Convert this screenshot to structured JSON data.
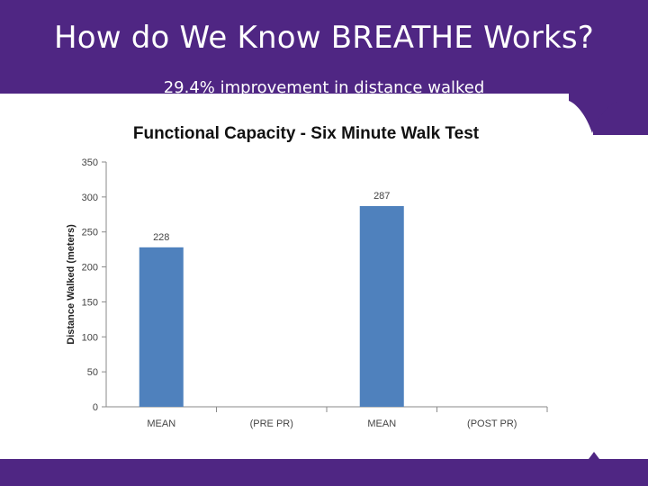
{
  "slide": {
    "title": "How do We Know BREATHE Works?",
    "subtitle": "29.4% improvement in distance walked"
  },
  "colors": {
    "brand_purple": "#4f2683",
    "bar": "#4f81bd"
  },
  "chart_data": {
    "type": "bar",
    "title": "Functional Capacity - Six Minute Walk Test",
    "xlabel": "",
    "ylabel": "Distance Walked (meters)",
    "categories": [
      "MEAN",
      "(PRE PR)",
      "MEAN",
      "(POST PR)"
    ],
    "values": [
      228,
      null,
      287,
      null
    ],
    "data_labels": [
      "228",
      "",
      "287",
      ""
    ],
    "ylim": [
      0,
      350
    ],
    "yticks": [
      0,
      50,
      100,
      150,
      200,
      250,
      300,
      350
    ],
    "grid": false,
    "legend": "none"
  }
}
